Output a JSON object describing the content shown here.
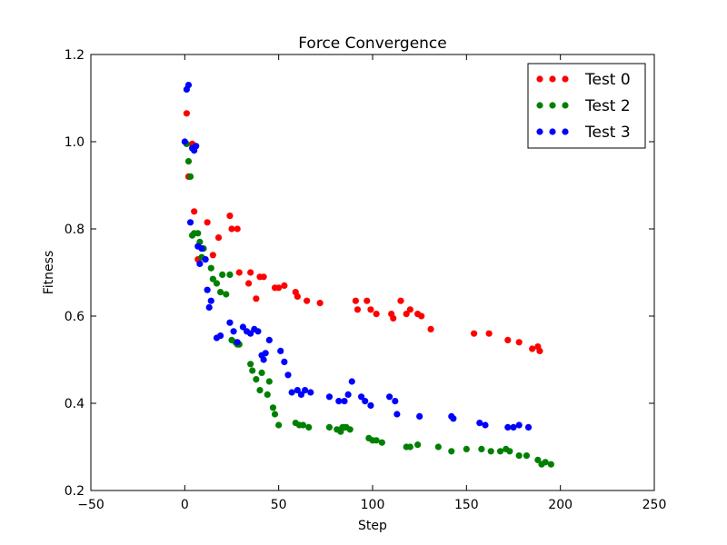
{
  "chart_data": {
    "type": "scatter",
    "title": "Force Convergence",
    "xlabel": "Step",
    "ylabel": "Fitness",
    "xlim": [
      -50,
      250
    ],
    "ylim": [
      0.2,
      1.2
    ],
    "xticks": [
      -50,
      0,
      50,
      100,
      150,
      200,
      250
    ],
    "yticks": [
      0.2,
      0.4,
      0.6,
      0.8,
      1.0,
      1.2
    ],
    "grid": false,
    "legend_position": "top-right",
    "series": [
      {
        "name": "Test 0",
        "color": "#ff0000",
        "x": [
          1,
          2,
          4,
          5,
          7,
          12,
          15,
          18,
          24,
          25,
          28,
          29,
          35,
          34,
          38,
          40,
          42,
          48,
          50,
          53,
          59,
          60,
          65,
          72,
          91,
          92,
          97,
          99,
          102,
          110,
          111,
          115,
          118,
          120,
          124,
          126,
          131,
          154,
          162,
          172,
          178,
          185,
          188,
          189
        ],
        "y": [
          1.065,
          0.92,
          0.995,
          0.84,
          0.73,
          0.815,
          0.74,
          0.78,
          0.83,
          0.8,
          0.8,
          0.7,
          0.7,
          0.675,
          0.64,
          0.69,
          0.69,
          0.665,
          0.665,
          0.67,
          0.655,
          0.645,
          0.635,
          0.63,
          0.635,
          0.615,
          0.635,
          0.615,
          0.605,
          0.605,
          0.595,
          0.635,
          0.605,
          0.615,
          0.605,
          0.6,
          0.57,
          0.56,
          0.56,
          0.545,
          0.54,
          0.525,
          0.53,
          0.52
        ]
      },
      {
        "name": "Test 2",
        "color": "#008000",
        "x": [
          1,
          2,
          3,
          4,
          5,
          7,
          8,
          9,
          10,
          11,
          14,
          15,
          17,
          19,
          20,
          22,
          24,
          25,
          27,
          28,
          29,
          35,
          36,
          38,
          40,
          41,
          44,
          45,
          47,
          48,
          50,
          59,
          61,
          63,
          66,
          77,
          81,
          83,
          84,
          85,
          86,
          88,
          98,
          100,
          102,
          105,
          118,
          120,
          124,
          135,
          142,
          150,
          158,
          163,
          168,
          171,
          173,
          178,
          182,
          188,
          190,
          192,
          195
        ],
        "y": [
          0.995,
          0.955,
          0.92,
          0.785,
          0.79,
          0.79,
          0.77,
          0.735,
          0.755,
          0.73,
          0.71,
          0.685,
          0.675,
          0.655,
          0.695,
          0.65,
          0.695,
          0.545,
          0.54,
          0.535,
          0.535,
          0.49,
          0.475,
          0.455,
          0.43,
          0.47,
          0.42,
          0.45,
          0.39,
          0.375,
          0.35,
          0.355,
          0.35,
          0.35,
          0.345,
          0.345,
          0.34,
          0.335,
          0.345,
          0.345,
          0.345,
          0.34,
          0.32,
          0.315,
          0.315,
          0.31,
          0.3,
          0.3,
          0.305,
          0.3,
          0.29,
          0.295,
          0.295,
          0.29,
          0.29,
          0.295,
          0.29,
          0.28,
          0.28,
          0.27,
          0.26,
          0.265,
          0.26
        ]
      },
      {
        "name": "Test 3",
        "color": "#0000ff",
        "x": [
          0,
          1,
          2,
          3,
          4,
          5,
          6,
          7,
          8,
          9,
          11,
          12,
          13,
          14,
          17,
          19,
          24,
          26,
          28,
          31,
          33,
          35,
          37,
          39,
          41,
          42,
          43,
          45,
          51,
          53,
          55,
          57,
          60,
          62,
          64,
          67,
          77,
          82,
          85,
          87,
          89,
          94,
          96,
          99,
          109,
          112,
          113,
          125,
          142,
          143,
          157,
          160,
          172,
          175,
          178,
          183
        ],
        "y": [
          1.0,
          1.12,
          1.13,
          0.815,
          0.985,
          0.98,
          0.99,
          0.76,
          0.72,
          0.755,
          0.73,
          0.66,
          0.62,
          0.635,
          0.55,
          0.555,
          0.585,
          0.565,
          0.54,
          0.575,
          0.565,
          0.56,
          0.57,
          0.565,
          0.51,
          0.5,
          0.515,
          0.545,
          0.52,
          0.495,
          0.465,
          0.425,
          0.43,
          0.42,
          0.43,
          0.425,
          0.415,
          0.405,
          0.405,
          0.42,
          0.45,
          0.415,
          0.405,
          0.395,
          0.415,
          0.405,
          0.375,
          0.37,
          0.37,
          0.365,
          0.355,
          0.35,
          0.345,
          0.345,
          0.35,
          0.345
        ]
      }
    ]
  }
}
